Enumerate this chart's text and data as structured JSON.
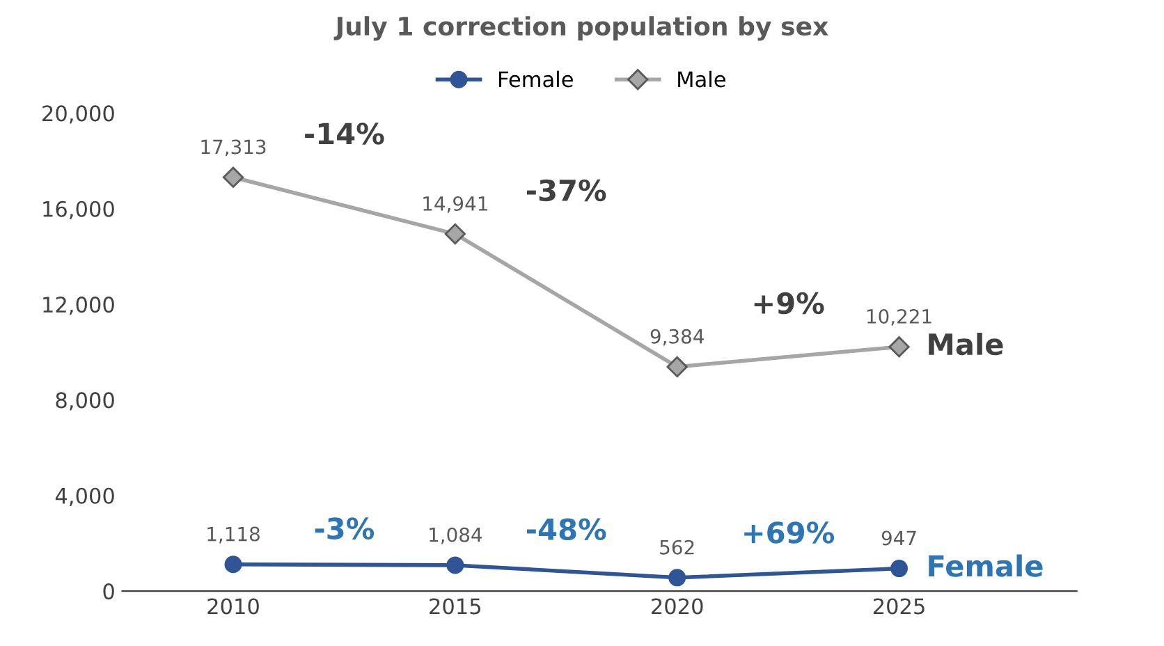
{
  "chart_data": {
    "type": "line",
    "title": "July 1 correction population by sex",
    "categories": [
      "2010",
      "2015",
      "2020",
      "2025"
    ],
    "series": [
      {
        "name": "Female",
        "color": "#2f5597",
        "marker": "circle",
        "values": [
          1118,
          1084,
          562,
          947
        ],
        "value_labels": [
          "1,118",
          "1,084",
          "562",
          "947"
        ]
      },
      {
        "name": "Male",
        "color": "#a6a6a6",
        "marker": "diamond",
        "values": [
          17313,
          14941,
          9384,
          10221
        ],
        "value_labels": [
          "17,313",
          "14,941",
          "9,384",
          "10,221"
        ]
      }
    ],
    "ylim": [
      0,
      20000
    ],
    "yticks": [
      {
        "value": 0,
        "label": "0"
      },
      {
        "value": 4000,
        "label": "4,000"
      },
      {
        "value": 8000,
        "label": "8,000"
      },
      {
        "value": 12000,
        "label": "12,000"
      },
      {
        "value": 16000,
        "label": "16,000"
      },
      {
        "value": 20000,
        "label": "20,000"
      }
    ],
    "annotations": [
      "-3%",
      "-48%",
      "+69%",
      "-14%",
      "-37%",
      "+9%",
      "Female",
      "Male"
    ],
    "legend": "top",
    "grid": false
  }
}
